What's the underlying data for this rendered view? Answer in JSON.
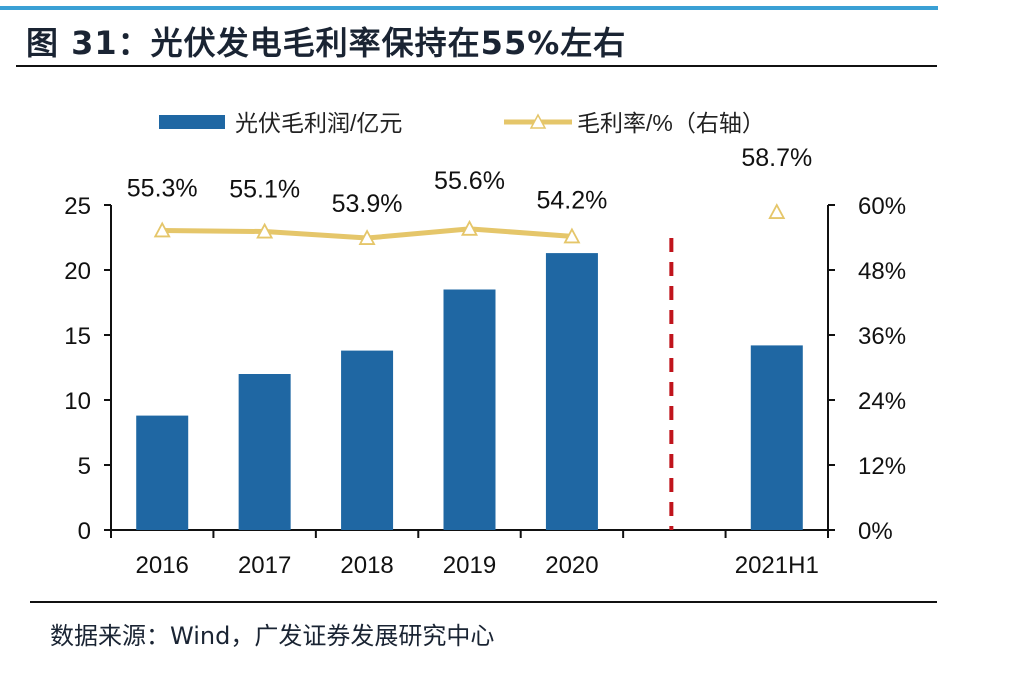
{
  "header": {
    "title": "图 31：光伏发电毛利率保持在55%左右"
  },
  "footer": {
    "source": "数据来源：Wind，广发证券发展研究中心"
  },
  "colors": {
    "bar": "#1f67a3",
    "line": "#e5c66a",
    "divider": "#c0141c",
    "accent_bar": "#3aa0d5"
  },
  "chart_data": {
    "type": "bar",
    "title": "图 31：光伏发电毛利率保持在55%左右",
    "categories": [
      "2016",
      "2017",
      "2018",
      "2019",
      "2020",
      "",
      "2021H1"
    ],
    "series": [
      {
        "name": "光伏毛利润/亿元",
        "type": "bar",
        "axis": "left",
        "values": [
          8.8,
          12.0,
          13.8,
          18.5,
          21.3,
          null,
          14.2
        ]
      },
      {
        "name": "毛利率/%（右轴）",
        "type": "line",
        "axis": "right",
        "marker": "triangle",
        "values": [
          55.3,
          55.1,
          53.9,
          55.6,
          54.2,
          null,
          58.7
        ],
        "labels": [
          "55.3%",
          "55.1%",
          "53.9%",
          "55.6%",
          "54.2%",
          "",
          "58.7%"
        ]
      }
    ],
    "y_left": {
      "min": 0,
      "max": 25,
      "ticks": [
        "0",
        "5",
        "10",
        "15",
        "20",
        "25"
      ]
    },
    "y_right": {
      "min": 0,
      "max": 60,
      "ticks": [
        "0%",
        "12%",
        "24%",
        "36%",
        "48%",
        "60%"
      ]
    },
    "xlabel": "",
    "ylabel": "",
    "grid": false,
    "legend": "top-center",
    "annotation": "dashed vertical divider between 2020 and 2021H1"
  }
}
